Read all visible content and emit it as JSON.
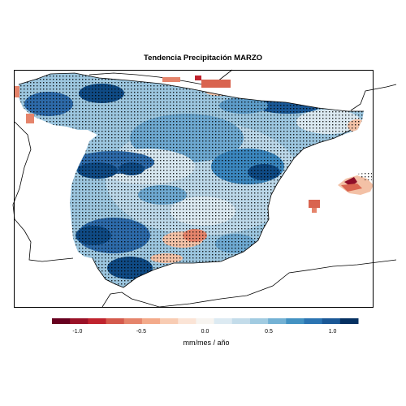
{
  "title": "Tendencia Precipitación MARZO",
  "legend": {
    "label": "mm/mes / año",
    "ticks": [
      "-1.0",
      "-0.5",
      "0.0",
      "0.5",
      "1.0"
    ],
    "tick_values": [
      -1.0,
      -0.5,
      0.0,
      0.5,
      1.0
    ],
    "range": [
      -1.2,
      1.2
    ],
    "colors": [
      "#67001f",
      "#9a1127",
      "#c0232e",
      "#d45a4c",
      "#e5846b",
      "#f3aa8a",
      "#f8ccb3",
      "#fbe4d6",
      "#f7f4f0",
      "#dceaf2",
      "#c3dcea",
      "#a1cbe1",
      "#73b1d4",
      "#4392c2",
      "#2b74b2",
      "#1a5896",
      "#053061"
    ]
  },
  "map": {
    "region": "Iberian Peninsula and Balearic Islands",
    "variable": "Tendencia Precipitación",
    "month": "MARZO",
    "significance_stipple": true,
    "colors": {
      "strong_positive": "#0f4a84",
      "positive": "#3b87bf",
      "weak_positive": "#93c2dd",
      "near_zero": "#dbe9f1",
      "weak_negative": "#f3c1a6",
      "negative": "#d9644f",
      "strong_negative": "#8e0d28",
      "coastline": "#000000"
    }
  }
}
